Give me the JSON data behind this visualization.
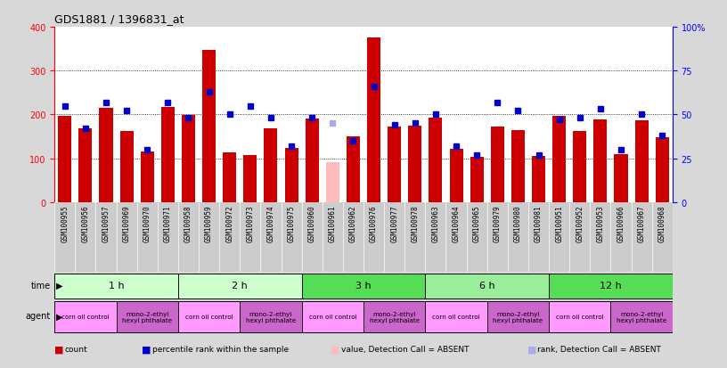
{
  "title": "GDS1881 / 1396831_at",
  "samples": [
    "GSM100955",
    "GSM100956",
    "GSM100957",
    "GSM100969",
    "GSM100970",
    "GSM100971",
    "GSM100958",
    "GSM100959",
    "GSM100972",
    "GSM100973",
    "GSM100974",
    "GSM100975",
    "GSM100960",
    "GSM100961",
    "GSM100962",
    "GSM100976",
    "GSM100977",
    "GSM100978",
    "GSM100963",
    "GSM100964",
    "GSM100965",
    "GSM100979",
    "GSM100980",
    "GSM100981",
    "GSM100951",
    "GSM100952",
    "GSM100953",
    "GSM100966",
    "GSM100967",
    "GSM100968"
  ],
  "count_values": [
    197,
    168,
    215,
    162,
    115,
    218,
    198,
    348,
    113,
    108,
    168,
    124,
    190,
    90,
    149,
    375,
    173,
    174,
    192,
    121,
    104,
    172,
    164,
    105,
    197,
    163,
    188,
    109,
    186,
    148
  ],
  "absent_count_index": [
    13
  ],
  "percentile_values": [
    55,
    42,
    57,
    52,
    30,
    57,
    48,
    63,
    50,
    55,
    48,
    32,
    48,
    45,
    35,
    66,
    44,
    45,
    50,
    32,
    27,
    57,
    52,
    27,
    47,
    48,
    53,
    30,
    50,
    38
  ],
  "absent_percentile_index": [
    13
  ],
  "time_groups": [
    {
      "label": "1 h",
      "start": 0,
      "end": 6,
      "color": "#ccffcc"
    },
    {
      "label": "2 h",
      "start": 6,
      "end": 12,
      "color": "#ccffcc"
    },
    {
      "label": "3 h",
      "start": 12,
      "end": 18,
      "color": "#55dd55"
    },
    {
      "label": "6 h",
      "start": 18,
      "end": 24,
      "color": "#99ee99"
    },
    {
      "label": "12 h",
      "start": 24,
      "end": 30,
      "color": "#55dd55"
    }
  ],
  "agent_groups": [
    {
      "label": "corn oil control",
      "start": 0,
      "end": 3,
      "color": "#ff99ff"
    },
    {
      "label": "mono-2-ethyl\nhexyl phthalate",
      "start": 3,
      "end": 6,
      "color": "#cc66cc"
    },
    {
      "label": "corn oil control",
      "start": 6,
      "end": 9,
      "color": "#ff99ff"
    },
    {
      "label": "mono-2-ethyl\nhexyl phthalate",
      "start": 9,
      "end": 12,
      "color": "#cc66cc"
    },
    {
      "label": "corn oil control",
      "start": 12,
      "end": 15,
      "color": "#ff99ff"
    },
    {
      "label": "mono-2-ethyl\nhexyl phthalate",
      "start": 15,
      "end": 18,
      "color": "#cc66cc"
    },
    {
      "label": "corn oil control",
      "start": 18,
      "end": 21,
      "color": "#ff99ff"
    },
    {
      "label": "mono-2-ethyl\nhexyl phthalate",
      "start": 21,
      "end": 24,
      "color": "#cc66cc"
    },
    {
      "label": "corn oil control",
      "start": 24,
      "end": 27,
      "color": "#ff99ff"
    },
    {
      "label": "mono-2-ethyl\nhexyl phthalate",
      "start": 27,
      "end": 30,
      "color": "#cc66cc"
    }
  ],
  "bar_color": "#cc0000",
  "absent_bar_color": "#ffbbbb",
  "dot_color": "#0000cc",
  "absent_dot_color": "#aaaaee",
  "ylim_left": [
    0,
    400
  ],
  "ylim_right": [
    0,
    100
  ],
  "yticks_left": [
    0,
    100,
    200,
    300,
    400
  ],
  "yticks_right": [
    0,
    25,
    50,
    75,
    100
  ],
  "bg_color": "#d8d8d8",
  "plot_bg_color": "#ffffff",
  "xtick_bg_color": "#cccccc",
  "legend_items": [
    {
      "color": "#cc0000",
      "marker": "s",
      "label": "count"
    },
    {
      "color": "#0000cc",
      "marker": "s",
      "label": "percentile rank within the sample"
    },
    {
      "color": "#ffbbbb",
      "marker": "s",
      "label": "value, Detection Call = ABSENT"
    },
    {
      "color": "#aaaaee",
      "marker": "s",
      "label": "rank, Detection Call = ABSENT"
    }
  ]
}
